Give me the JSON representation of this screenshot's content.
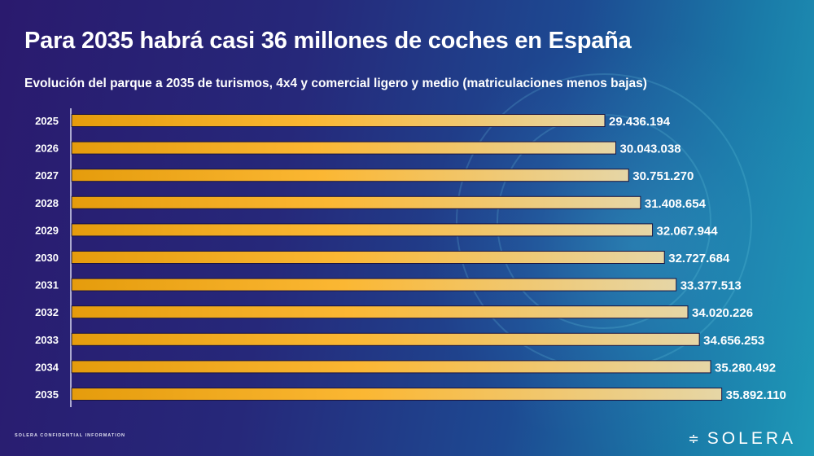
{
  "title": "Para 2035 habrá casi 36 millones de coches en España",
  "subtitle": "Evolución del parque a 2035 de turismos, 4x4 y comercial ligero y medio (matriculaciones menos bajas)",
  "footer": "SOLERA CONFIDENTIAL INFORMATION",
  "logo": "SOLERA",
  "colors": {
    "bar_start": "#e8a010",
    "bar_mid": "#fbb733",
    "bar_end": "#e6d6a6",
    "background": "#26287a"
  },
  "chart_data": {
    "type": "bar",
    "orientation": "horizontal",
    "title": "Para 2035 habrá casi 36 millones de coches en España",
    "subtitle": "Evolución del parque a 2035 de turismos, 4x4 y comercial ligero y medio (matriculaciones menos bajas)",
    "categories": [
      "2025",
      "2026",
      "2027",
      "2028",
      "2029",
      "2030",
      "2031",
      "2032",
      "2033",
      "2034",
      "2035"
    ],
    "values": [
      29436194,
      30043038,
      30751270,
      31408654,
      32067944,
      32727684,
      33377513,
      34020226,
      34656253,
      35280492,
      35892110
    ],
    "labels": [
      "29.436.194",
      "30.043.038",
      "30.751.270",
      "31.408.654",
      "32.067.944",
      "32.727.684",
      "33.377.513",
      "34.020.226",
      "34.656.253",
      "35.280.492",
      "35.892.110"
    ],
    "xlim": [
      0,
      36000000
    ],
    "grid": false,
    "legend": "none"
  }
}
